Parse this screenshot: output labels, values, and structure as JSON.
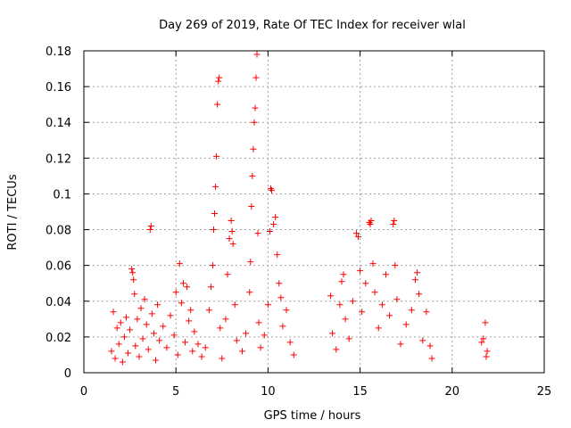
{
  "chart_data": {
    "type": "scatter",
    "title": "Day 269 of 2019, Rate Of TEC Index for receiver wlal",
    "xlabel": "GPS time / hours",
    "ylabel": "ROTI / TECUs",
    "xlim": [
      0,
      25
    ],
    "ylim": [
      0,
      0.18
    ],
    "x_ticks": [
      0,
      5,
      10,
      15,
      20,
      25
    ],
    "x_tick_labels": [
      "0",
      "5",
      "10",
      "15",
      "20",
      "25"
    ],
    "y_ticks": [
      0,
      0.02,
      0.04,
      0.06,
      0.08,
      0.1,
      0.12,
      0.14,
      0.16,
      0.18
    ],
    "y_tick_labels": [
      "0",
      "0.02",
      "0.04",
      "0.06",
      "0.08",
      "0.1",
      "0.12",
      "0.14",
      "0.16",
      "0.18"
    ],
    "grid": true,
    "marker": "+",
    "color": "#ff0000",
    "series": [
      {
        "name": "ROTI",
        "points": [
          [
            1.5,
            0.012
          ],
          [
            1.6,
            0.034
          ],
          [
            1.7,
            0.008
          ],
          [
            1.8,
            0.025
          ],
          [
            1.9,
            0.016
          ],
          [
            2.0,
            0.028
          ],
          [
            2.1,
            0.006
          ],
          [
            2.2,
            0.02
          ],
          [
            2.3,
            0.031
          ],
          [
            2.4,
            0.011
          ],
          [
            2.5,
            0.024
          ],
          [
            2.6,
            0.058
          ],
          [
            2.65,
            0.056
          ],
          [
            2.7,
            0.052
          ],
          [
            2.75,
            0.044
          ],
          [
            2.8,
            0.015
          ],
          [
            2.9,
            0.03
          ],
          [
            3.0,
            0.009
          ],
          [
            3.1,
            0.036
          ],
          [
            3.2,
            0.019
          ],
          [
            3.3,
            0.041
          ],
          [
            3.4,
            0.027
          ],
          [
            3.5,
            0.013
          ],
          [
            3.6,
            0.08
          ],
          [
            3.65,
            0.082
          ],
          [
            3.7,
            0.033
          ],
          [
            3.8,
            0.022
          ],
          [
            3.9,
            0.007
          ],
          [
            4.0,
            0.038
          ],
          [
            4.1,
            0.018
          ],
          [
            4.3,
            0.026
          ],
          [
            4.5,
            0.014
          ],
          [
            4.7,
            0.032
          ],
          [
            4.9,
            0.021
          ],
          [
            5.0,
            0.045
          ],
          [
            5.1,
            0.01
          ],
          [
            5.2,
            0.061
          ],
          [
            5.3,
            0.039
          ],
          [
            5.4,
            0.05
          ],
          [
            5.5,
            0.017
          ],
          [
            5.6,
            0.048
          ],
          [
            5.7,
            0.029
          ],
          [
            5.8,
            0.035
          ],
          [
            5.9,
            0.012
          ],
          [
            6.0,
            0.023
          ],
          [
            6.2,
            0.016
          ],
          [
            6.4,
            0.009
          ],
          [
            6.6,
            0.014
          ],
          [
            6.8,
            0.035
          ],
          [
            6.9,
            0.048
          ],
          [
            7.0,
            0.06
          ],
          [
            7.05,
            0.08
          ],
          [
            7.1,
            0.089
          ],
          [
            7.15,
            0.104
          ],
          [
            7.2,
            0.121
          ],
          [
            7.25,
            0.15
          ],
          [
            7.3,
            0.163
          ],
          [
            7.35,
            0.165
          ],
          [
            7.4,
            0.025
          ],
          [
            7.5,
            0.008
          ],
          [
            7.7,
            0.03
          ],
          [
            7.8,
            0.055
          ],
          [
            7.9,
            0.075
          ],
          [
            8.0,
            0.085
          ],
          [
            8.05,
            0.079
          ],
          [
            8.1,
            0.072
          ],
          [
            8.2,
            0.038
          ],
          [
            8.3,
            0.018
          ],
          [
            8.6,
            0.012
          ],
          [
            8.8,
            0.022
          ],
          [
            9.0,
            0.045
          ],
          [
            9.05,
            0.062
          ],
          [
            9.1,
            0.093
          ],
          [
            9.15,
            0.11
          ],
          [
            9.2,
            0.125
          ],
          [
            9.25,
            0.14
          ],
          [
            9.3,
            0.148
          ],
          [
            9.35,
            0.165
          ],
          [
            9.4,
            0.178
          ],
          [
            9.45,
            0.078
          ],
          [
            9.5,
            0.028
          ],
          [
            9.6,
            0.014
          ],
          [
            9.8,
            0.021
          ],
          [
            10.0,
            0.038
          ],
          [
            10.1,
            0.079
          ],
          [
            10.15,
            0.103
          ],
          [
            10.2,
            0.102
          ],
          [
            10.3,
            0.083
          ],
          [
            10.4,
            0.087
          ],
          [
            10.5,
            0.066
          ],
          [
            10.6,
            0.05
          ],
          [
            10.7,
            0.042
          ],
          [
            10.8,
            0.026
          ],
          [
            11.0,
            0.035
          ],
          [
            11.2,
            0.017
          ],
          [
            11.4,
            0.01
          ],
          [
            13.4,
            0.043
          ],
          [
            13.5,
            0.022
          ],
          [
            13.7,
            0.013
          ],
          [
            13.9,
            0.038
          ],
          [
            14.0,
            0.051
          ],
          [
            14.1,
            0.055
          ],
          [
            14.2,
            0.03
          ],
          [
            14.4,
            0.019
          ],
          [
            14.6,
            0.04
          ],
          [
            14.8,
            0.078
          ],
          [
            14.9,
            0.076
          ],
          [
            15.0,
            0.057
          ],
          [
            15.1,
            0.034
          ],
          [
            15.3,
            0.05
          ],
          [
            15.5,
            0.084
          ],
          [
            15.55,
            0.083
          ],
          [
            15.6,
            0.085
          ],
          [
            15.7,
            0.061
          ],
          [
            15.8,
            0.045
          ],
          [
            16.0,
            0.025
          ],
          [
            16.2,
            0.038
          ],
          [
            16.4,
            0.055
          ],
          [
            16.6,
            0.032
          ],
          [
            16.8,
            0.083
          ],
          [
            16.85,
            0.085
          ],
          [
            16.9,
            0.06
          ],
          [
            17.0,
            0.041
          ],
          [
            17.2,
            0.016
          ],
          [
            17.5,
            0.027
          ],
          [
            17.8,
            0.035
          ],
          [
            18.0,
            0.052
          ],
          [
            18.1,
            0.056
          ],
          [
            18.2,
            0.044
          ],
          [
            18.4,
            0.018
          ],
          [
            18.6,
            0.034
          ],
          [
            18.8,
            0.015
          ],
          [
            18.9,
            0.008
          ],
          [
            21.6,
            0.017
          ],
          [
            21.7,
            0.019
          ],
          [
            21.8,
            0.028
          ],
          [
            21.85,
            0.009
          ],
          [
            21.9,
            0.012
          ]
        ]
      }
    ]
  }
}
